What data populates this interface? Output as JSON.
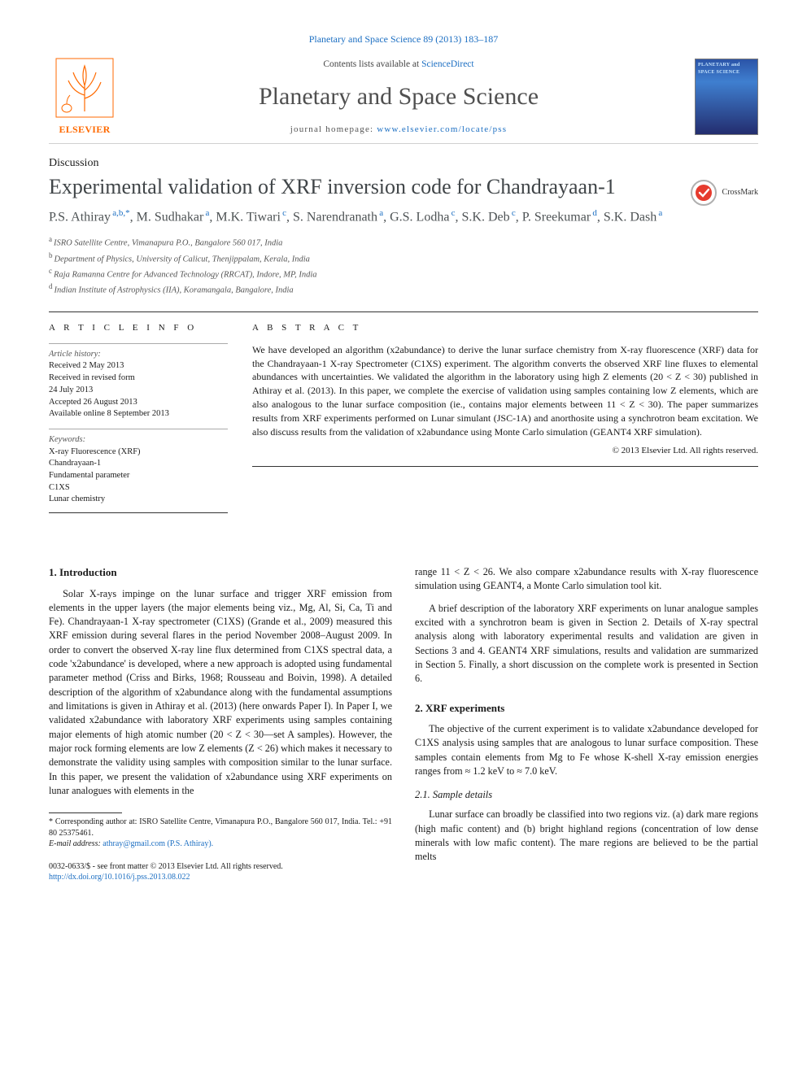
{
  "topLink": "Planetary and Space Science 89 (2013) 183–187",
  "masthead": {
    "publisher": "ELSEVIER",
    "contentsPrefix": "Contents lists available at ",
    "contentsLink": "ScienceDirect",
    "journalTitle": "Planetary and Space Science",
    "homepagePrefix": "journal homepage: ",
    "homepageUrl": "www.elsevier.com/locate/pss",
    "thumbText": "PLANETARY and SPACE SCIENCE"
  },
  "articleType": "Discussion",
  "title": "Experimental validation of XRF inversion code for Chandrayaan-1",
  "crossmark": "CrossMark",
  "authors": [
    {
      "name": "P.S. Athiray",
      "aff": "a,b,*"
    },
    {
      "name": "M. Sudhakar",
      "aff": "a"
    },
    {
      "name": "M.K. Tiwari",
      "aff": "c"
    },
    {
      "name": "S. Narendranath",
      "aff": "a"
    },
    {
      "name": "G.S. Lodha",
      "aff": "c"
    },
    {
      "name": "S.K. Deb",
      "aff": "c"
    },
    {
      "name": "P. Sreekumar",
      "aff": "d"
    },
    {
      "name": "S.K. Dash",
      "aff": "a"
    }
  ],
  "affiliations": [
    {
      "tag": "a",
      "text": "ISRO Satellite Centre, Vimanapura P.O., Bangalore 560 017, India"
    },
    {
      "tag": "b",
      "text": "Department of Physics, University of Calicut, Thenjippalam, Kerala, India"
    },
    {
      "tag": "c",
      "text": "Raja Ramanna Centre for Advanced Technology (RRCAT), Indore, MP, India"
    },
    {
      "tag": "d",
      "text": "Indian Institute of Astrophysics (IIA), Koramangala, Bangalore, India"
    }
  ],
  "articleInfo": {
    "heading": "A R T I C L E  I N F O",
    "historyLabel": "Article history:",
    "history": [
      "Received 2 May 2013",
      "Received in revised form",
      "24 July 2013",
      "Accepted 26 August 2013",
      "Available online 8 September 2013"
    ],
    "keywordsLabel": "Keywords:",
    "keywords": [
      "X-ray Fluorescence (XRF)",
      "Chandrayaan-1",
      "Fundamental parameter",
      "C1XS",
      "Lunar chemistry"
    ]
  },
  "abstract": {
    "heading": "A B S T R A C T",
    "text": "We have developed an algorithm (x2abundance) to derive the lunar surface chemistry from X-ray fluorescence (XRF) data for the Chandrayaan-1 X-ray Spectrometer (C1XS) experiment. The algorithm converts the observed XRF line fluxes to elemental abundances with uncertainties. We validated the algorithm in the laboratory using high Z elements (20 < Z < 30) published in Athiray et al. (2013). In this paper, we complete the exercise of validation using samples containing low Z elements, which are also analogous to the lunar surface composition (ie., contains major elements between 11 < Z < 30). The paper summarizes results from XRF experiments performed on Lunar simulant (JSC-1A) and anorthosite using a synchrotron beam excitation. We also discuss results from the validation of x2abundance using Monte Carlo simulation (GEANT4 XRF simulation).",
    "copyright": "© 2013 Elsevier Ltd. All rights reserved."
  },
  "body": {
    "left": {
      "heading1": "1.  Introduction",
      "p1": "Solar X-rays impinge on the lunar surface and trigger XRF emission from elements in the upper layers (the major elements being viz., Mg, Al, Si, Ca, Ti and Fe). Chandrayaan-1 X-ray spectrometer (C1XS) (Grande et al., 2009) measured this XRF emission during several flares in the period November 2008–August 2009. In order to convert the observed X-ray line flux determined from C1XS spectral data, a code 'x2abundance' is developed, where a new approach is adopted using fundamental parameter method (Criss and Birks, 1968; Rousseau and Boivin, 1998). A detailed description of the algorithm of x2abundance along with the fundamental assumptions and limitations is given in Athiray et al. (2013) (here onwards Paper I). In Paper I, we validated x2abundance with laboratory XRF experiments using samples containing major elements of high atomic number (20 < Z < 30—set A samples). However, the major rock forming elements are low Z elements (Z < 26) which makes it necessary to demonstrate the validity using samples with composition similar to the lunar surface. In this paper, we present the validation of x2abundance using XRF experiments on lunar analogues with elements in the"
    },
    "right": {
      "p1": "range 11 < Z < 26. We also compare x2abundance results with X-ray fluorescence simulation using GEANT4, a Monte Carlo simulation tool kit.",
      "p2": "A brief description of the laboratory XRF experiments on lunar analogue samples excited with a synchrotron beam is given in Section 2. Details of X-ray spectral analysis along with laboratory experimental results and validation are given in Sections 3 and 4. GEANT4 XRF simulations, results and validation are summarized in Section 5. Finally, a short discussion on the complete work is presented in Section 6.",
      "heading2": "2.  XRF experiments",
      "p3": "The objective of the current experiment is to validate x2abundance developed for C1XS analysis using samples that are analogous to lunar surface composition. These samples contain elements from Mg to Fe whose K-shell X-ray emission energies ranges from ≈ 1.2 keV to ≈ 7.0 keV.",
      "subheading21": "2.1. Sample details",
      "p4": "Lunar surface can broadly be classified into two regions viz. (a) dark mare regions (high mafic content) and (b) bright highland regions (concentration of low dense minerals with low mafic content). The mare regions are believed to be the partial melts"
    }
  },
  "footnote": {
    "corr": "* Corresponding author at: ISRO Satellite Centre, Vimanapura P.O., Bangalore 560 017, India. Tel.: +91 80 25375461.",
    "emailLabel": "E-mail address: ",
    "email": "athray@gmail.com (P.S. Athiray)."
  },
  "bottom": {
    "line1": "0032-0633/$ - see front matter © 2013 Elsevier Ltd. All rights reserved.",
    "doi": "http://dx.doi.org/10.1016/j.pss.2013.08.022"
  },
  "colors": {
    "link": "#1b6ec2",
    "publisher": "#ff6a00",
    "title": "#505050",
    "body": "#1a1a1a",
    "rule": "#333333"
  }
}
